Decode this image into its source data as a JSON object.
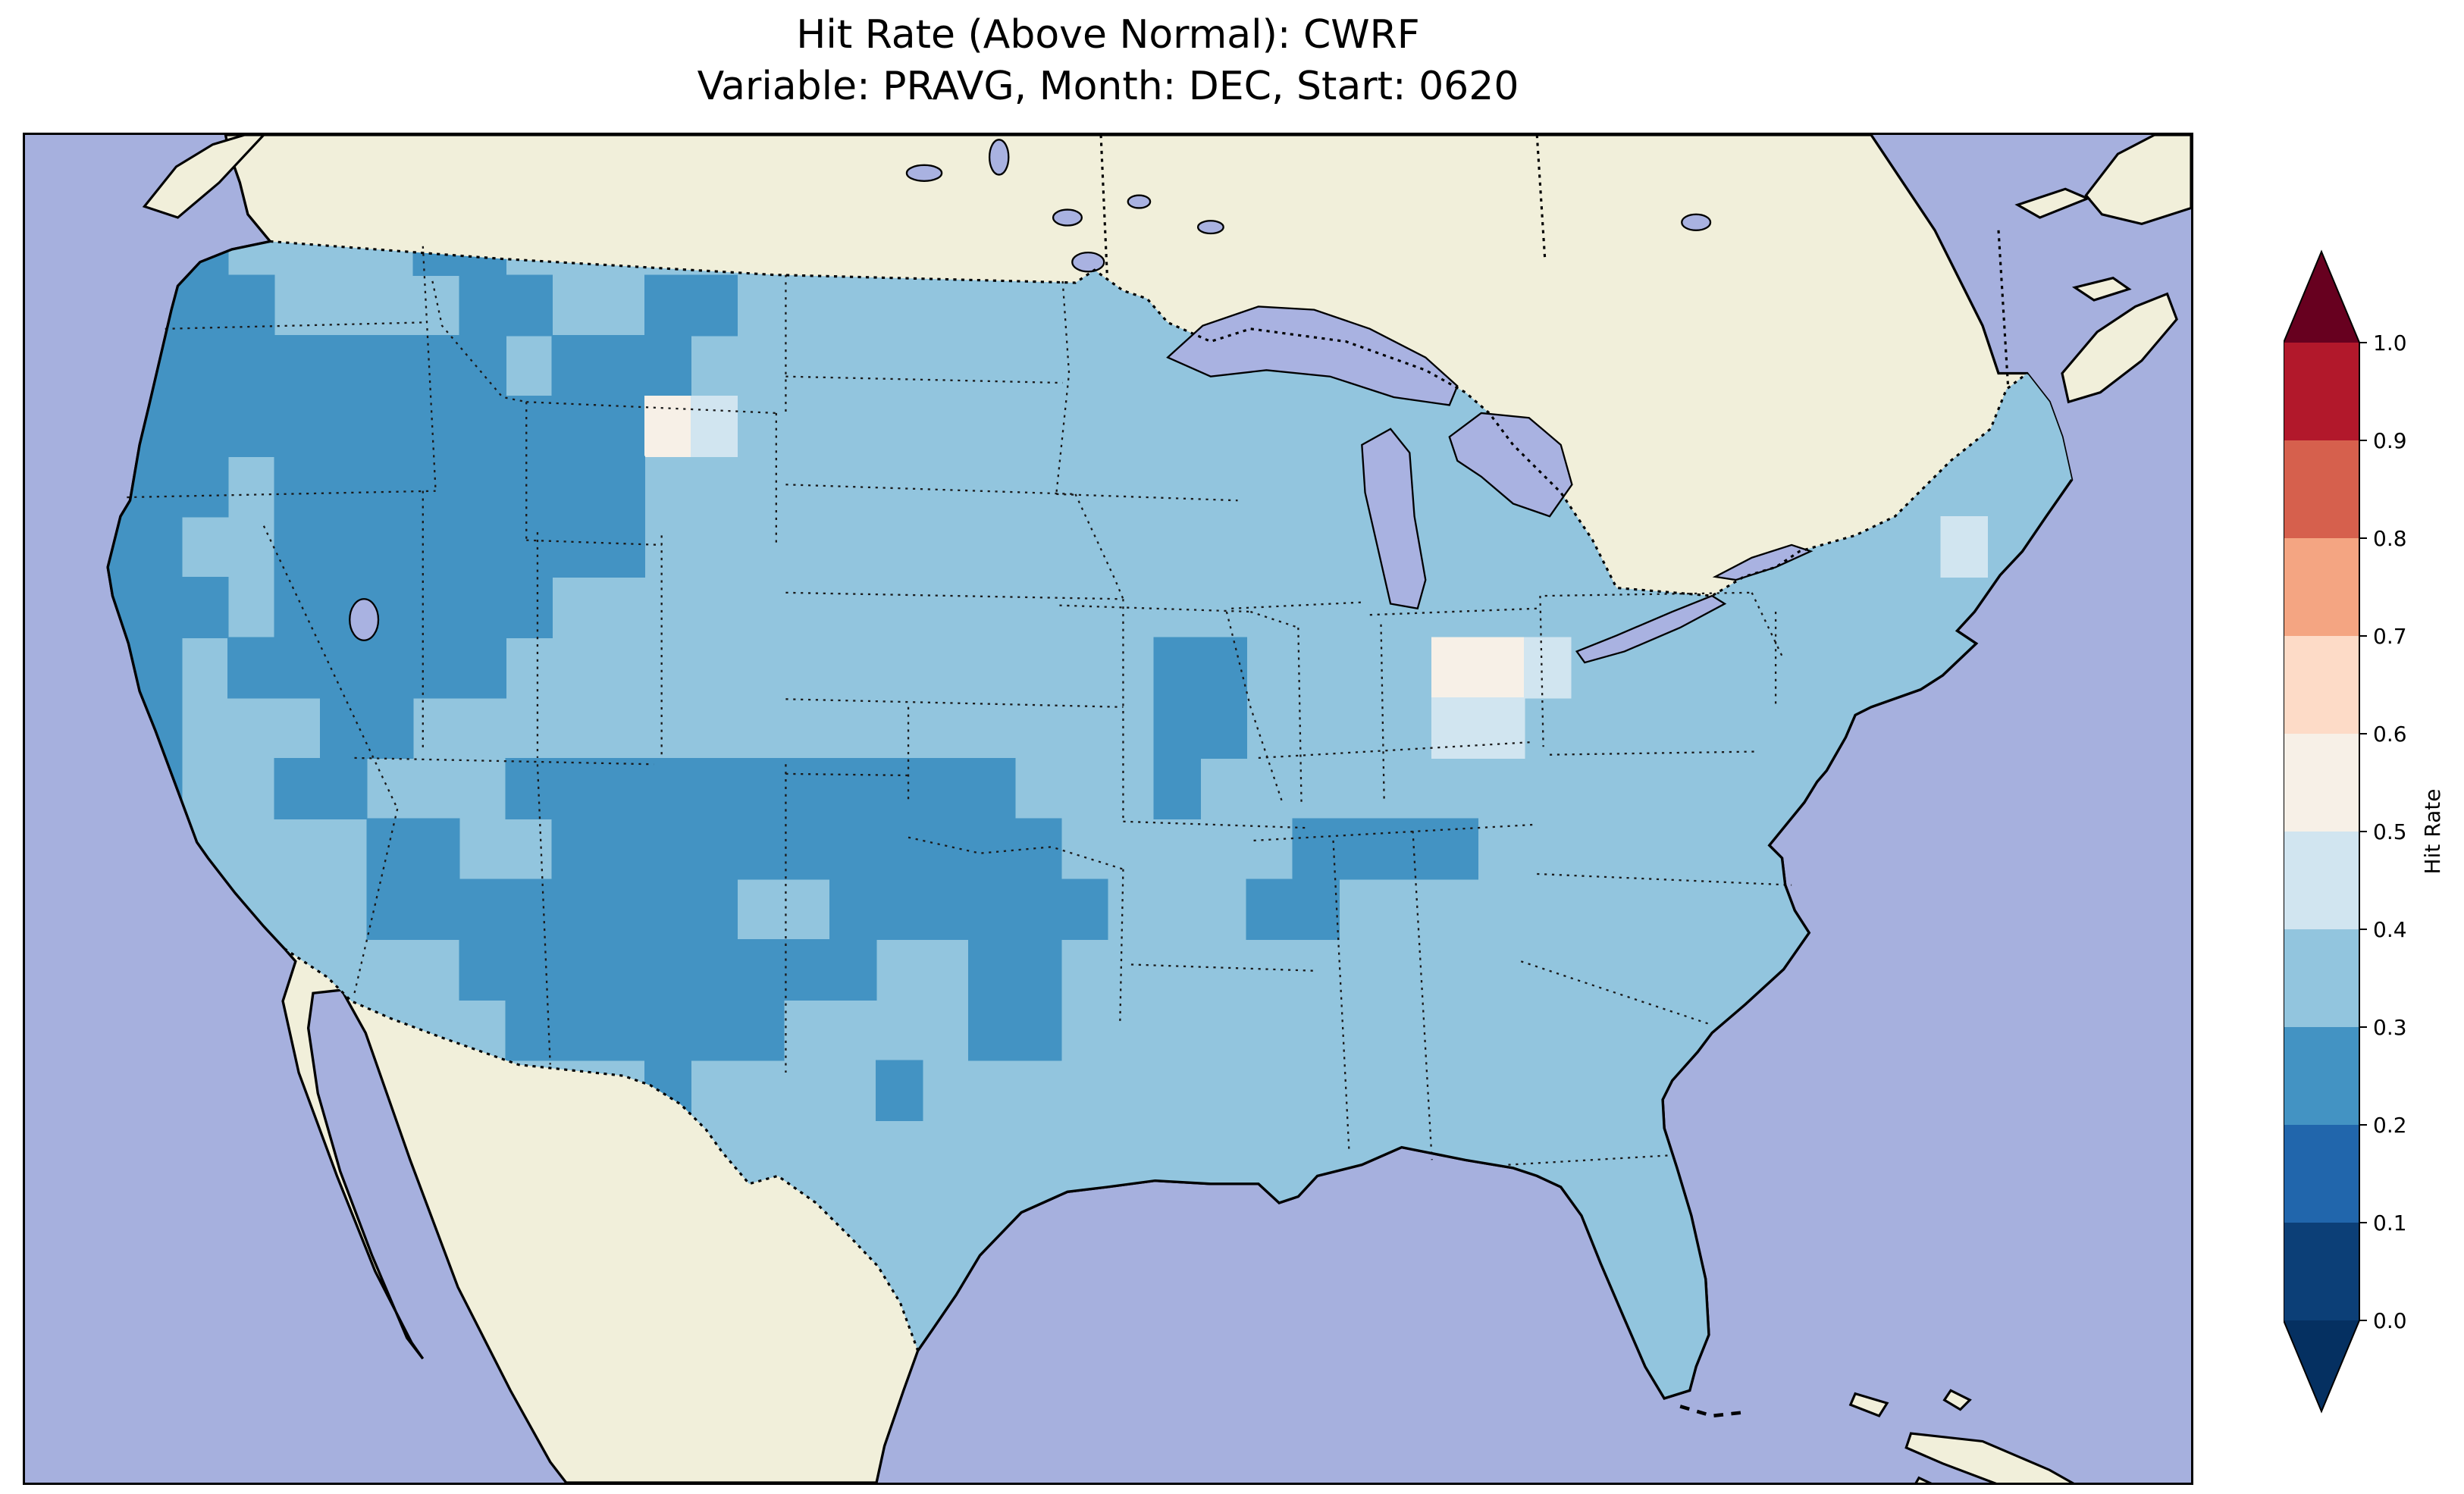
{
  "figure": {
    "title_line1": "Hit Rate (Above Normal): CWRF",
    "title_line2": "Variable: PRAVG, Month: DEC, Start: 0620"
  },
  "colorbar": {
    "label": "Hit Rate",
    "tick_labels_top_to_bottom": [
      "1.0",
      "0.9",
      "0.8",
      "0.7",
      "0.6",
      "0.5",
      "0.4",
      "0.3",
      "0.2",
      "0.1",
      "0.0"
    ],
    "segment_colors_top_to_bottom": [
      "#b2182b",
      "#d6604d",
      "#f4a582",
      "#fddbc7",
      "#f7f0e7",
      "#d1e5f0",
      "#92c5de",
      "#4393c3",
      "#2166ac",
      "#0c3f77"
    ],
    "over_arrow_color": "#67001f",
    "under_arrow_color": "#053061"
  },
  "map": {
    "ocean_color": "#a6b0de",
    "land_color": "#f1efda",
    "lake_color": "#a9b2e1",
    "coast_color": "#000000"
  },
  "chart_data": {
    "type": "heatmap",
    "title": "Hit Rate (Above Normal): CWRF",
    "subtitle": "Variable: PRAVG, Month: DEC, Start: 0620",
    "model": "CWRF",
    "variable": "PRAVG",
    "month": "DEC",
    "start": "0620",
    "metric": "Hit Rate",
    "category": "Above Normal",
    "region": "Continental United States",
    "colorbar_range": [
      0.0,
      1.0
    ],
    "colorbar_step": 0.1,
    "colorbar_extended_both_ends": true,
    "value_bins": {
      "2": "0.2-0.3",
      "3": "0.3-0.4",
      "4": "0.4-0.5",
      "5": "0.5-0.6"
    },
    "bin_colors": {
      "2": "#4393c3",
      "3": "#92c5de",
      "4": "#d1e5f0",
      "5": "#f7f0e7"
    },
    "no_data_char": ".",
    "grid_rows_west_to_east_north_to_south": [
      "222333322333333333333333....................",
      "2222333322332233333333333...................",
      "2222222223222333333333333..............3333",
      "2222222222225433333333333333............3333",
      "22232222222233333333333333333333333333333333",
      "22332222222233333333333333333333333333334333",
      "22232222223333333333333333333333333333333333",
      "223222222333333333333332233335543333333333..",
      "223332233333333333333332233334433333333333...",
      "2233223332222222222233323333333333333333....",
      "233333223322222222222333332222333333333.....",
      "2233332222222233222222333223333333333.......",
      "223333332222222223322333333333333333........",
      ".........22222233332233333333333333..........",
      "............233332..............333.........",
      ".............333................333.........",
      ".............33..................33.........",
      ".................................33.........",
      "..............3.............................",
      "............................................"
    ],
    "dominant_bin": "0.3-0.4",
    "notes": "Most of CONUS is in the 0.3-0.4 hit-rate bin (light blue); large 0.2-0.3 (medium blue) areas cover the West Coast, Great Basin, Rockies, southern Plains/Texas/Oklahoma/Arkansas and Tennessee; small pale 0.4-0.6 pockets occur over northeast Wyoming and northwest Ohio/Indiana."
  }
}
